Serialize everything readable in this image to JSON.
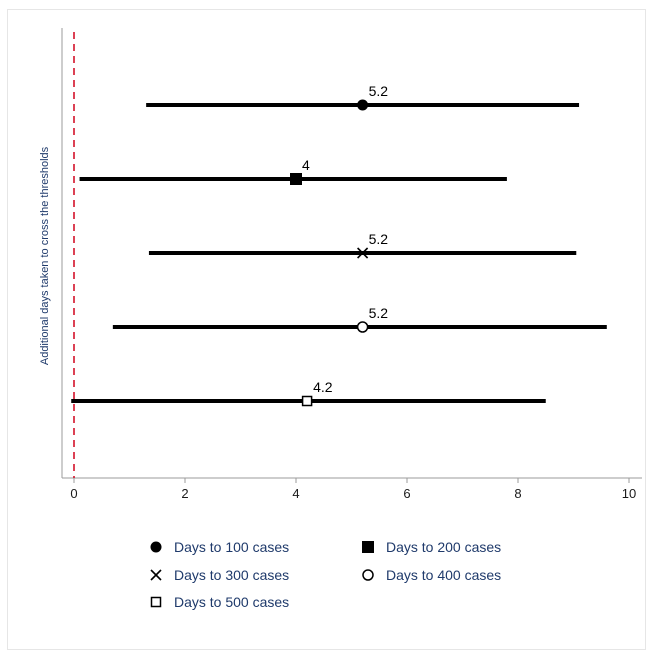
{
  "chart_data": {
    "type": "scatter",
    "subtype": "interval-plot",
    "title": "",
    "xlabel": "",
    "ylabel": "Additional days taken to cross the thresholds",
    "xlim": [
      -0.3,
      10.3
    ],
    "xticks": [
      0,
      2,
      4,
      6,
      8,
      10
    ],
    "reference_line": {
      "x": 0,
      "style": "dashed",
      "color": "#d0021b"
    },
    "grid": false,
    "legend_position": "bottom",
    "series": [
      {
        "name": "Days to 100 cases",
        "marker": "filled-circle",
        "estimate": 5.2,
        "lower": 1.3,
        "upper": 9.1,
        "label": "5.2"
      },
      {
        "name": "Days to 200 cases",
        "marker": "filled-square",
        "estimate": 4.0,
        "lower": 0.1,
        "upper": 7.8,
        "label": "4"
      },
      {
        "name": "Days to 300 cases",
        "marker": "x",
        "estimate": 5.2,
        "lower": 1.35,
        "upper": 9.05,
        "label": "5.2"
      },
      {
        "name": "Days to 400 cases",
        "marker": "hollow-circle",
        "estimate": 5.2,
        "lower": 0.7,
        "upper": 9.6,
        "label": "5.2"
      },
      {
        "name": "Days to 500 cases",
        "marker": "hollow-square",
        "estimate": 4.2,
        "lower": -0.05,
        "upper": 8.5,
        "label": "4.2"
      }
    ],
    "colors": {
      "line": "#000000",
      "axis": "#9b9b9b",
      "reference": "#d0021b",
      "legend_text": "#1f3a6b"
    }
  }
}
